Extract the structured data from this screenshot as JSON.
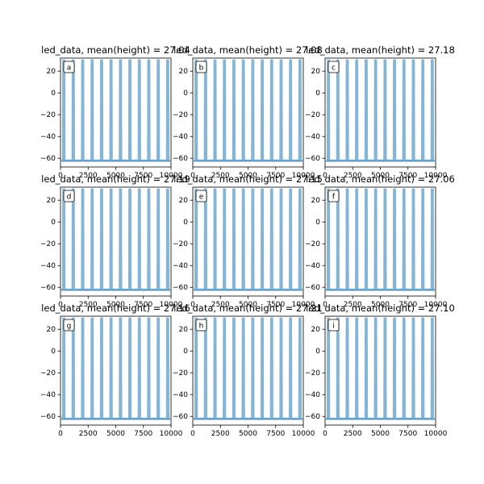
{
  "chart_data": [
    {
      "panel": "a",
      "type": "line",
      "title": "led_data, mean(height) = 27.04",
      "xlim": [
        0,
        10000
      ],
      "ylim": [
        -68,
        32
      ],
      "xticks": [
        0,
        2500,
        5000,
        7500,
        10000
      ],
      "xtick_labels": [
        "0",
        "2500",
        "5000",
        "7500",
        "10000"
      ],
      "yticks": [
        20,
        0,
        -20,
        -40,
        -60
      ],
      "ytick_labels": [
        "20",
        "0",
        "−20",
        "−40",
        "−60"
      ],
      "baseline": -62,
      "pulse_height": 30,
      "pulse_count": 12,
      "series_color": "#1f77b4"
    },
    {
      "panel": "b",
      "type": "line",
      "title": "led_data, mean(height) = 27.08",
      "xlim": [
        0,
        10000
      ],
      "ylim": [
        -68,
        32
      ],
      "xticks": [
        0,
        2500,
        5000,
        7500,
        10000
      ],
      "xtick_labels": [
        "0",
        "2500",
        "5000",
        "7500",
        "10000"
      ],
      "yticks": [
        20,
        0,
        -20,
        -40,
        -60
      ],
      "ytick_labels": [
        "20",
        "0",
        "−20",
        "−40",
        "−60"
      ],
      "baseline": -62,
      "pulse_height": 30,
      "pulse_count": 12,
      "series_color": "#1f77b4"
    },
    {
      "panel": "c",
      "type": "line",
      "title": "led_data, mean(height) = 27.18",
      "xlim": [
        0,
        10000
      ],
      "ylim": [
        -68,
        32
      ],
      "xticks": [
        0,
        2500,
        5000,
        7500,
        10000
      ],
      "xtick_labels": [
        "0",
        "2500",
        "5000",
        "7500",
        "10000"
      ],
      "yticks": [
        20,
        0,
        -20,
        -40,
        -60
      ],
      "ytick_labels": [
        "20",
        "0",
        "−20",
        "−40",
        "−60"
      ],
      "baseline": -62,
      "pulse_height": 30,
      "pulse_count": 12,
      "series_color": "#1f77b4"
    },
    {
      "panel": "d",
      "type": "line",
      "title": "led_data, mean(height) = 27.19",
      "xlim": [
        0,
        10000
      ],
      "ylim": [
        -68,
        32
      ],
      "xticks": [
        0,
        2500,
        5000,
        7500,
        10000
      ],
      "xtick_labels": [
        "0",
        "2500",
        "5000",
        "7500",
        "10000"
      ],
      "yticks": [
        20,
        0,
        -20,
        -40,
        -60
      ],
      "ytick_labels": [
        "20",
        "0",
        "−20",
        "−40",
        "−60"
      ],
      "baseline": -62,
      "pulse_height": 30,
      "pulse_count": 12,
      "series_color": "#1f77b4"
    },
    {
      "panel": "e",
      "type": "line",
      "title": "led_data, mean(height) = 27.15",
      "xlim": [
        0,
        10000
      ],
      "ylim": [
        -68,
        32
      ],
      "xticks": [
        0,
        2500,
        5000,
        7500,
        10000
      ],
      "xtick_labels": [
        "0",
        "2500",
        "5000",
        "7500",
        "10000"
      ],
      "yticks": [
        20,
        0,
        -20,
        -40,
        -60
      ],
      "ytick_labels": [
        "20",
        "0",
        "−20",
        "−40",
        "−60"
      ],
      "baseline": -62,
      "pulse_height": 30,
      "pulse_count": 12,
      "series_color": "#1f77b4"
    },
    {
      "panel": "f",
      "type": "line",
      "title": "led_data, mean(height) = 27.06",
      "xlim": [
        0,
        10000
      ],
      "ylim": [
        -68,
        32
      ],
      "xticks": [
        0,
        2500,
        5000,
        7500,
        10000
      ],
      "xtick_labels": [
        "0",
        "2500",
        "5000",
        "7500",
        "10000"
      ],
      "yticks": [
        20,
        0,
        -20,
        -40,
        -60
      ],
      "ytick_labels": [
        "20",
        "0",
        "−20",
        "−40",
        "−60"
      ],
      "baseline": -62,
      "pulse_height": 30,
      "pulse_count": 12,
      "series_color": "#1f77b4"
    },
    {
      "panel": "g",
      "type": "line",
      "title": "led_data, mean(height) = 27.16",
      "xlim": [
        0,
        10000
      ],
      "ylim": [
        -68,
        32
      ],
      "xticks": [
        0,
        2500,
        5000,
        7500,
        10000
      ],
      "xtick_labels": [
        "0",
        "2500",
        "5000",
        "7500",
        "10000"
      ],
      "yticks": [
        20,
        0,
        -20,
        -40,
        -60
      ],
      "ytick_labels": [
        "20",
        "0",
        "−20",
        "−40",
        "−60"
      ],
      "baseline": -62,
      "pulse_height": 30,
      "pulse_count": 12,
      "series_color": "#1f77b4"
    },
    {
      "panel": "h",
      "type": "line",
      "title": "led_data, mean(height) = 27.21",
      "xlim": [
        0,
        10000
      ],
      "ylim": [
        -68,
        32
      ],
      "xticks": [
        0,
        2500,
        5000,
        7500,
        10000
      ],
      "xtick_labels": [
        "0",
        "2500",
        "5000",
        "7500",
        "10000"
      ],
      "yticks": [
        20,
        0,
        -20,
        -40,
        -60
      ],
      "ytick_labels": [
        "20",
        "0",
        "−20",
        "−40",
        "−60"
      ],
      "baseline": -62,
      "pulse_height": 30,
      "pulse_count": 12,
      "series_color": "#1f77b4"
    },
    {
      "panel": "i",
      "type": "line",
      "title": "led_data, mean(height) = 27.10",
      "xlim": [
        0,
        10000
      ],
      "ylim": [
        -68,
        32
      ],
      "xticks": [
        0,
        2500,
        5000,
        7500,
        10000
      ],
      "xtick_labels": [
        "0",
        "2500",
        "5000",
        "7500",
        "10000"
      ],
      "yticks": [
        20,
        0,
        -20,
        -40,
        -60
      ],
      "ytick_labels": [
        "20",
        "0",
        "−20",
        "−40",
        "−60"
      ],
      "baseline": -62,
      "pulse_height": 30,
      "pulse_count": 12,
      "series_color": "#1f77b4"
    }
  ]
}
